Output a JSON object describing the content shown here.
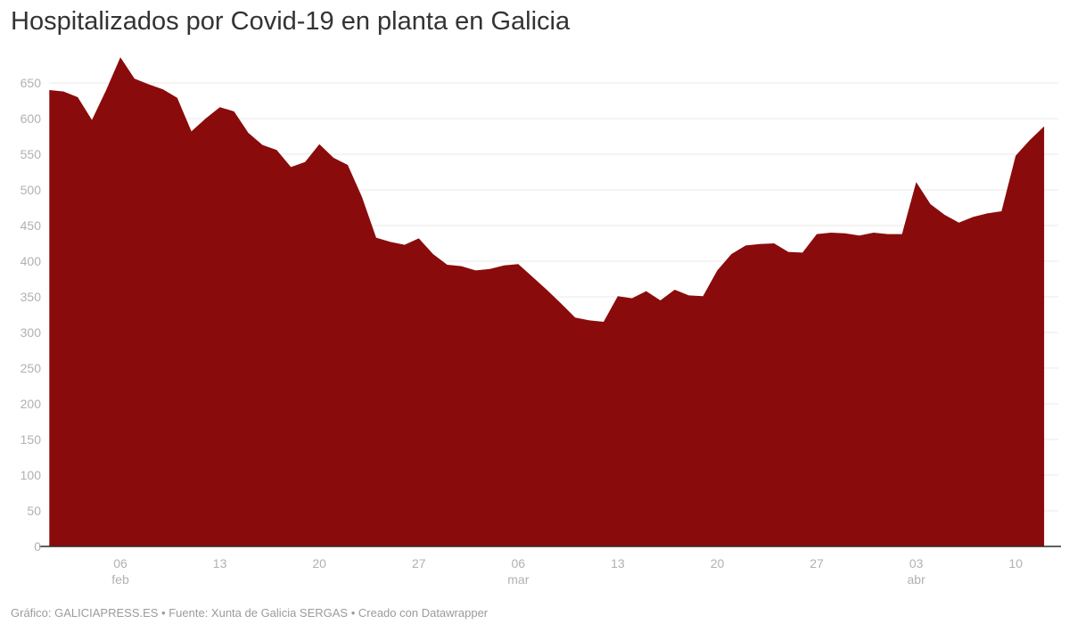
{
  "header": {
    "title": "Hospitalizados por Covid-19 en planta en Galicia"
  },
  "footer": {
    "text": "Gráfico: GALICIAPRESS.ES • Fuente: Xunta de Galicia SERGAS • Creado con Datawrapper"
  },
  "chart_data": {
    "type": "area",
    "title": "Hospitalizados por Covid-19 en planta en Galicia",
    "xlabel": "",
    "ylabel": "",
    "ylim": [
      0,
      687
    ],
    "grid": "horizontal",
    "legend": "none",
    "colors": {
      "area_fill": "#8a0b0b",
      "gridline": "#e9e9e9",
      "axis_line": "#2b2b2b",
      "tick_text": "#b1b1b1",
      "title_text": "#333333",
      "footer_text": "#9b9b9b"
    },
    "y_ticks": [
      0,
      50,
      100,
      150,
      200,
      250,
      300,
      350,
      400,
      450,
      500,
      550,
      600,
      650
    ],
    "x": [
      "1 feb",
      "2 feb",
      "3 feb",
      "4 feb",
      "5 feb",
      "6 feb",
      "7 feb",
      "8 feb",
      "9 feb",
      "10 feb",
      "11 feb",
      "12 feb",
      "13 feb",
      "14 feb",
      "15 feb",
      "16 feb",
      "17 feb",
      "18 feb",
      "19 feb",
      "20 feb",
      "21 feb",
      "22 feb",
      "23 feb",
      "24 feb",
      "25 feb",
      "26 feb",
      "27 feb",
      "28 feb",
      "1 mar",
      "2 mar",
      "3 mar",
      "4 mar",
      "5 mar",
      "6 mar",
      "7 mar",
      "8 mar",
      "9 mar",
      "10 mar",
      "11 mar",
      "12 mar",
      "13 mar",
      "14 mar",
      "15 mar",
      "16 mar",
      "17 mar",
      "18 mar",
      "19 mar",
      "20 mar",
      "21 mar",
      "22 mar",
      "23 mar",
      "24 mar",
      "25 mar",
      "26 mar",
      "27 mar",
      "28 mar",
      "29 mar",
      "30 mar",
      "31 mar",
      "1 abr",
      "2 abr",
      "3 abr",
      "4 abr",
      "5 abr",
      "6 abr",
      "7 abr",
      "8 abr",
      "9 abr",
      "10 abr",
      "11 abr",
      "12 abr"
    ],
    "values": [
      640,
      638,
      630,
      598,
      640,
      686,
      656,
      648,
      641,
      629,
      582,
      600,
      616,
      610,
      580,
      563,
      556,
      532,
      539,
      564,
      545,
      535,
      490,
      433,
      427,
      423,
      432,
      410,
      395,
      393,
      387,
      389,
      394,
      396,
      378,
      360,
      341,
      321,
      317,
      315,
      351,
      348,
      358,
      345,
      360,
      352,
      351,
      387,
      410,
      422,
      424,
      425,
      413,
      412,
      438,
      440,
      439,
      436,
      440,
      438,
      438,
      511,
      480,
      465,
      454,
      462,
      467,
      470,
      548,
      570,
      589
    ],
    "x_ticks": [
      {
        "index": 5,
        "label": "06",
        "month": "feb"
      },
      {
        "index": 12,
        "label": "13",
        "month": ""
      },
      {
        "index": 19,
        "label": "20",
        "month": ""
      },
      {
        "index": 26,
        "label": "27",
        "month": ""
      },
      {
        "index": 33,
        "label": "06",
        "month": "mar"
      },
      {
        "index": 40,
        "label": "13",
        "month": ""
      },
      {
        "index": 47,
        "label": "20",
        "month": ""
      },
      {
        "index": 54,
        "label": "27",
        "month": ""
      },
      {
        "index": 61,
        "label": "03",
        "month": "abr"
      },
      {
        "index": 68,
        "label": "10",
        "month": ""
      }
    ]
  }
}
